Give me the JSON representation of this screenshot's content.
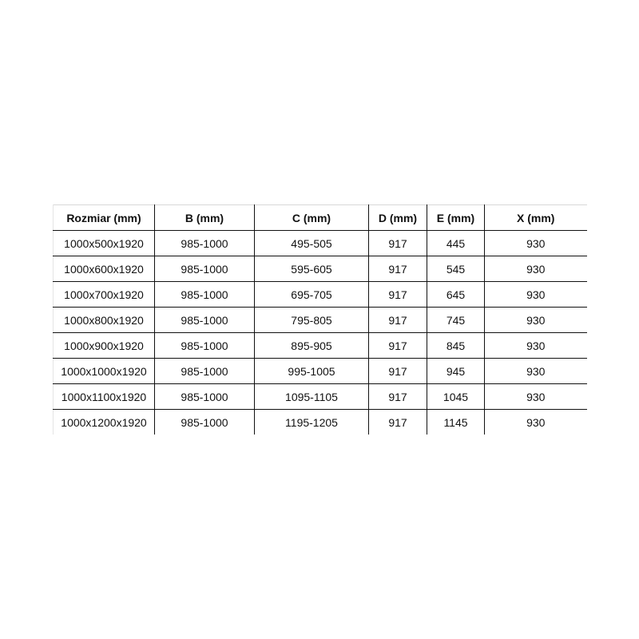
{
  "table": {
    "headers": [
      "Rozmiar (mm)",
      "B (mm)",
      "C (mm)",
      "D (mm)",
      "E (mm)",
      "X (mm)"
    ],
    "rows": [
      [
        "1000x500x1920",
        "985-1000",
        "495-505",
        "917",
        "445",
        "930"
      ],
      [
        "1000x600x1920",
        "985-1000",
        "595-605",
        "917",
        "545",
        "930"
      ],
      [
        "1000x700x1920",
        "985-1000",
        "695-705",
        "917",
        "645",
        "930"
      ],
      [
        "1000x800x1920",
        "985-1000",
        "795-805",
        "917",
        "745",
        "930"
      ],
      [
        "1000x900x1920",
        "985-1000",
        "895-905",
        "917",
        "845",
        "930"
      ],
      [
        "1000x1000x1920",
        "985-1000",
        "995-1005",
        "917",
        "945",
        "930"
      ],
      [
        "1000x1100x1920",
        "985-1000",
        "1095-1105",
        "917",
        "1045",
        "930"
      ],
      [
        "1000x1200x1920",
        "985-1000",
        "1195-1205",
        "917",
        "1145",
        "930"
      ]
    ]
  }
}
